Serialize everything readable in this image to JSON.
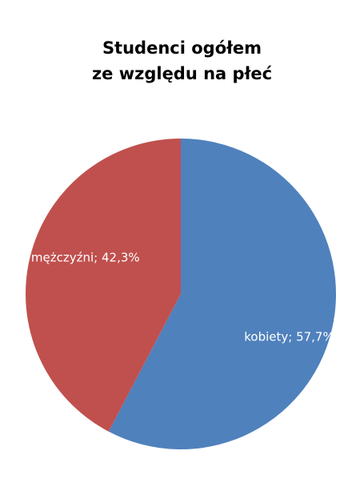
{
  "chart_data": {
    "type": "pie",
    "title_lines": [
      "Studenci ogółem",
      "ze względu na płeć"
    ],
    "slices": [
      {
        "label": "kobiety",
        "value": 57.7,
        "display": "kobiety; 57,7%",
        "color": "#4F81BD"
      },
      {
        "label": "mężczyźni",
        "value": 42.3,
        "display": "mężczyźni; 42,3%",
        "color": "#C0504D"
      }
    ],
    "start_angle": "top (12 o'clock), clockwise",
    "legend": "none",
    "data_labels": "inside"
  }
}
